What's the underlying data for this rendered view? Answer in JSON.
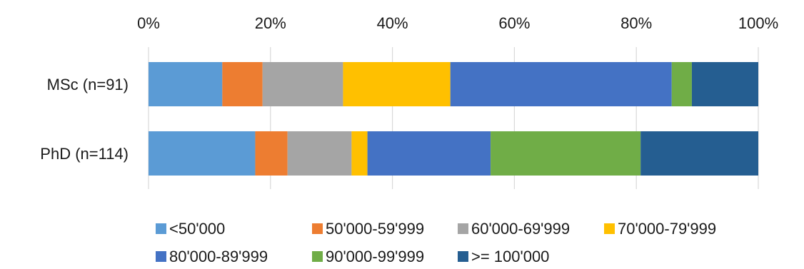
{
  "chart_data": {
    "type": "bar",
    "orientation": "horizontal",
    "stacking": "percent",
    "categories": [
      "MSc (n=91)",
      "PhD (n=114)"
    ],
    "x_ticks": [
      "0%",
      "20%",
      "40%",
      "60%",
      "80%",
      "100%"
    ],
    "xlim": [
      0,
      100
    ],
    "x_axis_position": "top",
    "grid": true,
    "legend_position": "bottom",
    "series": [
      {
        "name": "<50'000",
        "color": "#5B9BD5",
        "values": [
          12.1,
          17.5
        ]
      },
      {
        "name": "50'000-59'999",
        "color": "#ED7D31",
        "values": [
          6.6,
          5.3
        ]
      },
      {
        "name": "60'000-69'999",
        "color": "#A5A5A5",
        "values": [
          13.2,
          10.5
        ]
      },
      {
        "name": "70'000-79'999",
        "color": "#FFC000",
        "values": [
          17.6,
          2.6
        ]
      },
      {
        "name": "80'000-89'999",
        "color": "#4472C4",
        "values": [
          36.3,
          20.2
        ]
      },
      {
        "name": "90'000-99'999",
        "color": "#70AD47",
        "values": [
          3.3,
          24.6
        ]
      },
      {
        "name": ">= 100'000",
        "color": "#255E91",
        "values": [
          10.9,
          19.3
        ]
      }
    ]
  }
}
